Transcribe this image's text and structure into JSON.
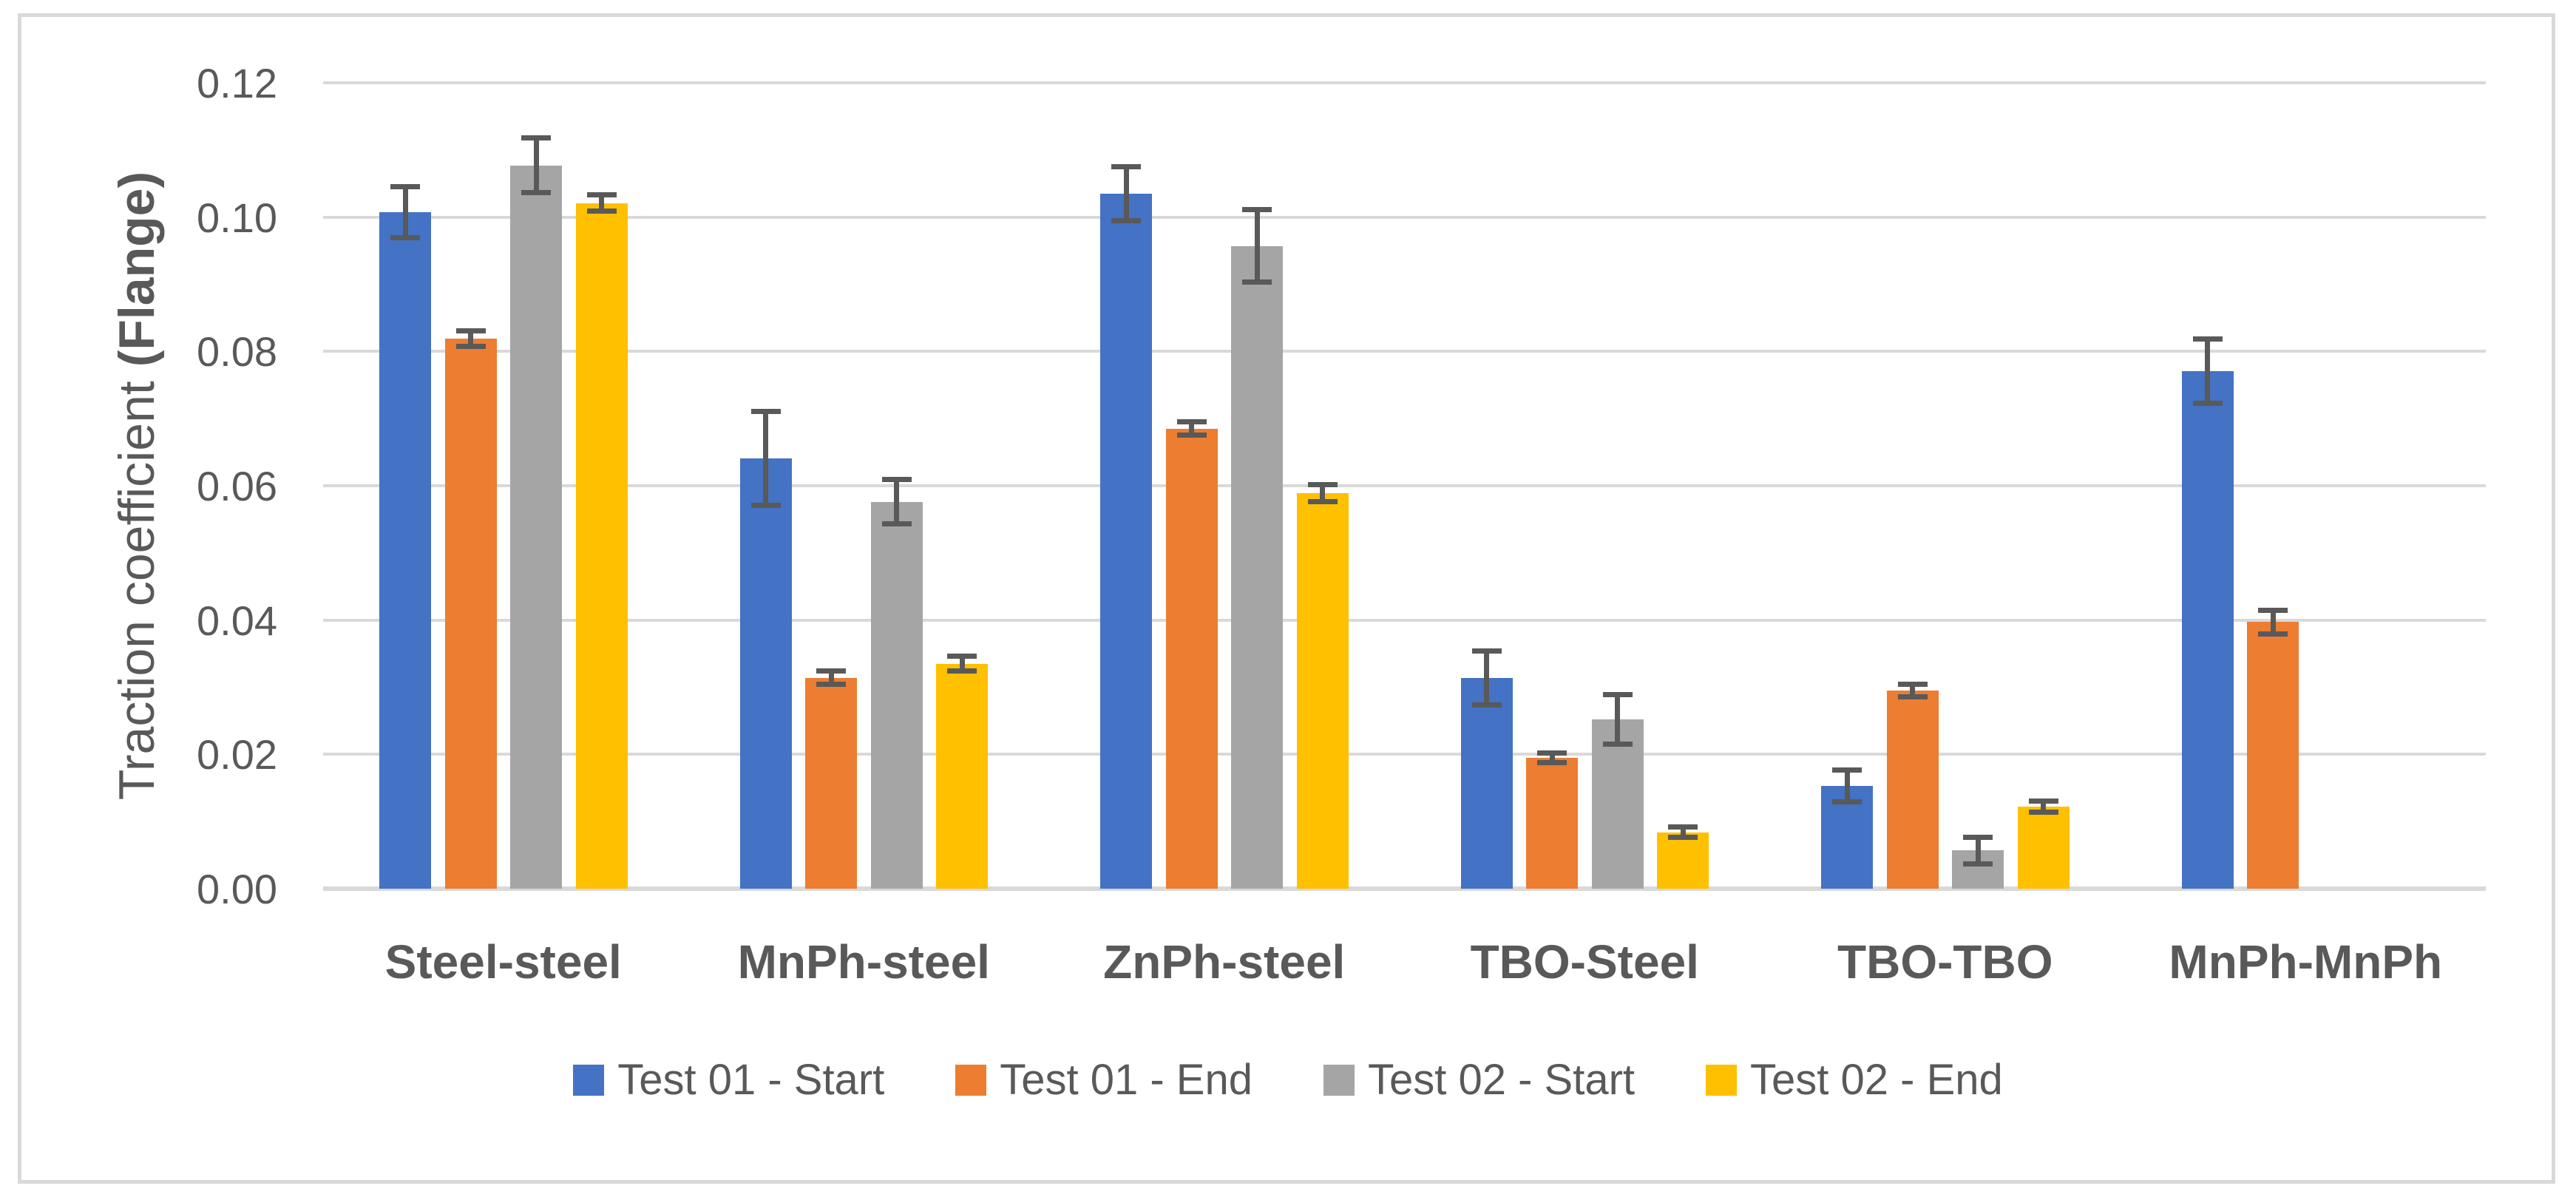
{
  "chart_data": {
    "type": "bar",
    "title": "",
    "ylabel_prefix": "Traction coefficient ",
    "ylabel_emphasis": "(Flange)",
    "categories": [
      "Steel-steel",
      "MnPh-steel",
      "ZnPh-steel",
      "TBO-Steel",
      "TBO-TBO",
      "MnPh-MnPh"
    ],
    "ylim": [
      0,
      0.12
    ],
    "ytick_step": 0.02,
    "ytick_labels": [
      "0.00",
      "0.02",
      "0.04",
      "0.06",
      "0.08",
      "0.10",
      "0.12"
    ],
    "grid": true,
    "legend_position": "bottom",
    "series": [
      {
        "name": "Test 01 - Start",
        "color": "#4472C4",
        "values": [
          0.1007,
          0.0641,
          0.1035,
          0.0314,
          0.0153,
          0.0771
        ],
        "errors": [
          0.0038,
          0.007,
          0.004,
          0.004,
          0.0024,
          0.0048
        ]
      },
      {
        "name": "Test 01 - End",
        "color": "#ED7D31",
        "values": [
          0.0819,
          0.0314,
          0.0685,
          0.0195,
          0.0295,
          0.0397
        ],
        "errors": [
          0.0012,
          0.001,
          0.001,
          0.0007,
          0.0009,
          0.0018
        ]
      },
      {
        "name": "Test 02 - Start",
        "color": "#A5A5A5",
        "values": [
          0.1077,
          0.0576,
          0.0957,
          0.0252,
          0.0057,
          null
        ],
        "errors": [
          0.0041,
          0.0033,
          0.0054,
          0.0037,
          0.002,
          null
        ]
      },
      {
        "name": "Test 02 - End",
        "color": "#FFC000",
        "values": [
          0.1021,
          0.0335,
          0.0589,
          0.0084,
          0.0122,
          null
        ],
        "errors": [
          0.0012,
          0.0011,
          0.0013,
          0.0008,
          0.0008,
          null
        ]
      }
    ],
    "error_bar_color": "#595959",
    "gridline_color": "#D9D9D9",
    "axis_line_color": "#D9D9D9",
    "text_color": "#595959",
    "background_color": "#FFFFFF",
    "frame_border_color": "#D9D9D9"
  }
}
